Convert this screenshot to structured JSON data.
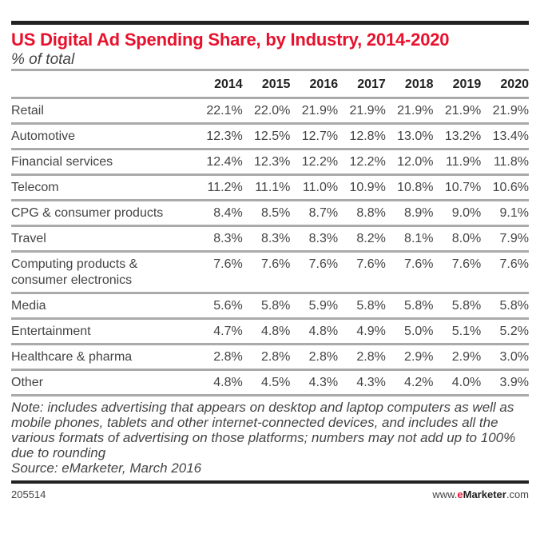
{
  "header": {
    "title": "US Digital Ad Spending Share, by Industry, 2014-2020",
    "subtitle": "% of total"
  },
  "table": {
    "columns": [
      "2014",
      "2015",
      "2016",
      "2017",
      "2018",
      "2019",
      "2020"
    ],
    "rows": [
      {
        "label": "Retail",
        "values": [
          "22.1%",
          "22.0%",
          "21.9%",
          "21.9%",
          "21.9%",
          "21.9%",
          "21.9%"
        ]
      },
      {
        "label": "Automotive",
        "values": [
          "12.3%",
          "12.5%",
          "12.7%",
          "12.8%",
          "13.0%",
          "13.2%",
          "13.4%"
        ]
      },
      {
        "label": "Financial services",
        "values": [
          "12.4%",
          "12.3%",
          "12.2%",
          "12.2%",
          "12.0%",
          "11.9%",
          "11.8%"
        ]
      },
      {
        "label": "Telecom",
        "values": [
          "11.2%",
          "11.1%",
          "11.0%",
          "10.9%",
          "10.8%",
          "10.7%",
          "10.6%"
        ]
      },
      {
        "label": "CPG & consumer products",
        "values": [
          "8.4%",
          "8.5%",
          "8.7%",
          "8.8%",
          "8.9%",
          "9.0%",
          "9.1%"
        ]
      },
      {
        "label": "Travel",
        "values": [
          "8.3%",
          "8.3%",
          "8.3%",
          "8.2%",
          "8.1%",
          "8.0%",
          "7.9%"
        ]
      },
      {
        "label": "Computing products & consumer electronics",
        "values": [
          "7.6%",
          "7.6%",
          "7.6%",
          "7.6%",
          "7.6%",
          "7.6%",
          "7.6%"
        ]
      },
      {
        "label": "Media",
        "values": [
          "5.6%",
          "5.8%",
          "5.9%",
          "5.8%",
          "5.8%",
          "5.8%",
          "5.8%"
        ]
      },
      {
        "label": "Entertainment",
        "values": [
          "4.7%",
          "4.8%",
          "4.8%",
          "4.9%",
          "5.0%",
          "5.1%",
          "5.2%"
        ]
      },
      {
        "label": "Healthcare & pharma",
        "values": [
          "2.8%",
          "2.8%",
          "2.8%",
          "2.8%",
          "2.9%",
          "2.9%",
          "3.0%"
        ]
      },
      {
        "label": "Other",
        "values": [
          "4.8%",
          "4.5%",
          "4.3%",
          "4.3%",
          "4.2%",
          "4.0%",
          "3.9%"
        ]
      }
    ]
  },
  "note": "Note: includes advertising that appears on desktop and laptop computers as well as mobile phones, tablets and other internet-connected devices, and includes all the various formats of advertising on those platforms; numbers may not add up to 100% due to rounding",
  "source": "Source: eMarketer, March 2016",
  "footer": {
    "id": "205514",
    "brand_prefix": "www.",
    "brand_e": "e",
    "brand_name": "Marketer",
    "brand_suffix": ".com"
  },
  "colors": {
    "title": "#e8112d",
    "rule": "#aaaaaa",
    "bar": "#222222"
  },
  "chart_data": {
    "type": "table",
    "title": "US Digital Ad Spending Share, by Industry, 2014-2020",
    "subtitle": "% of total",
    "x": [
      2014,
      2015,
      2016,
      2017,
      2018,
      2019,
      2020
    ],
    "series": [
      {
        "name": "Retail",
        "values": [
          22.1,
          22.0,
          21.9,
          21.9,
          21.9,
          21.9,
          21.9
        ]
      },
      {
        "name": "Automotive",
        "values": [
          12.3,
          12.5,
          12.7,
          12.8,
          13.0,
          13.2,
          13.4
        ]
      },
      {
        "name": "Financial services",
        "values": [
          12.4,
          12.3,
          12.2,
          12.2,
          12.0,
          11.9,
          11.8
        ]
      },
      {
        "name": "Telecom",
        "values": [
          11.2,
          11.1,
          11.0,
          10.9,
          10.8,
          10.7,
          10.6
        ]
      },
      {
        "name": "CPG & consumer products",
        "values": [
          8.4,
          8.5,
          8.7,
          8.8,
          8.9,
          9.0,
          9.1
        ]
      },
      {
        "name": "Travel",
        "values": [
          8.3,
          8.3,
          8.3,
          8.2,
          8.1,
          8.0,
          7.9
        ]
      },
      {
        "name": "Computing products & consumer electronics",
        "values": [
          7.6,
          7.6,
          7.6,
          7.6,
          7.6,
          7.6,
          7.6
        ]
      },
      {
        "name": "Media",
        "values": [
          5.6,
          5.8,
          5.9,
          5.8,
          5.8,
          5.8,
          5.8
        ]
      },
      {
        "name": "Entertainment",
        "values": [
          4.7,
          4.8,
          4.8,
          4.9,
          5.0,
          5.1,
          5.2
        ]
      },
      {
        "name": "Healthcare & pharma",
        "values": [
          2.8,
          2.8,
          2.8,
          2.8,
          2.9,
          2.9,
          3.0
        ]
      },
      {
        "name": "Other",
        "values": [
          4.8,
          4.5,
          4.3,
          4.3,
          4.2,
          4.0,
          3.9
        ]
      }
    ],
    "unit": "%"
  }
}
